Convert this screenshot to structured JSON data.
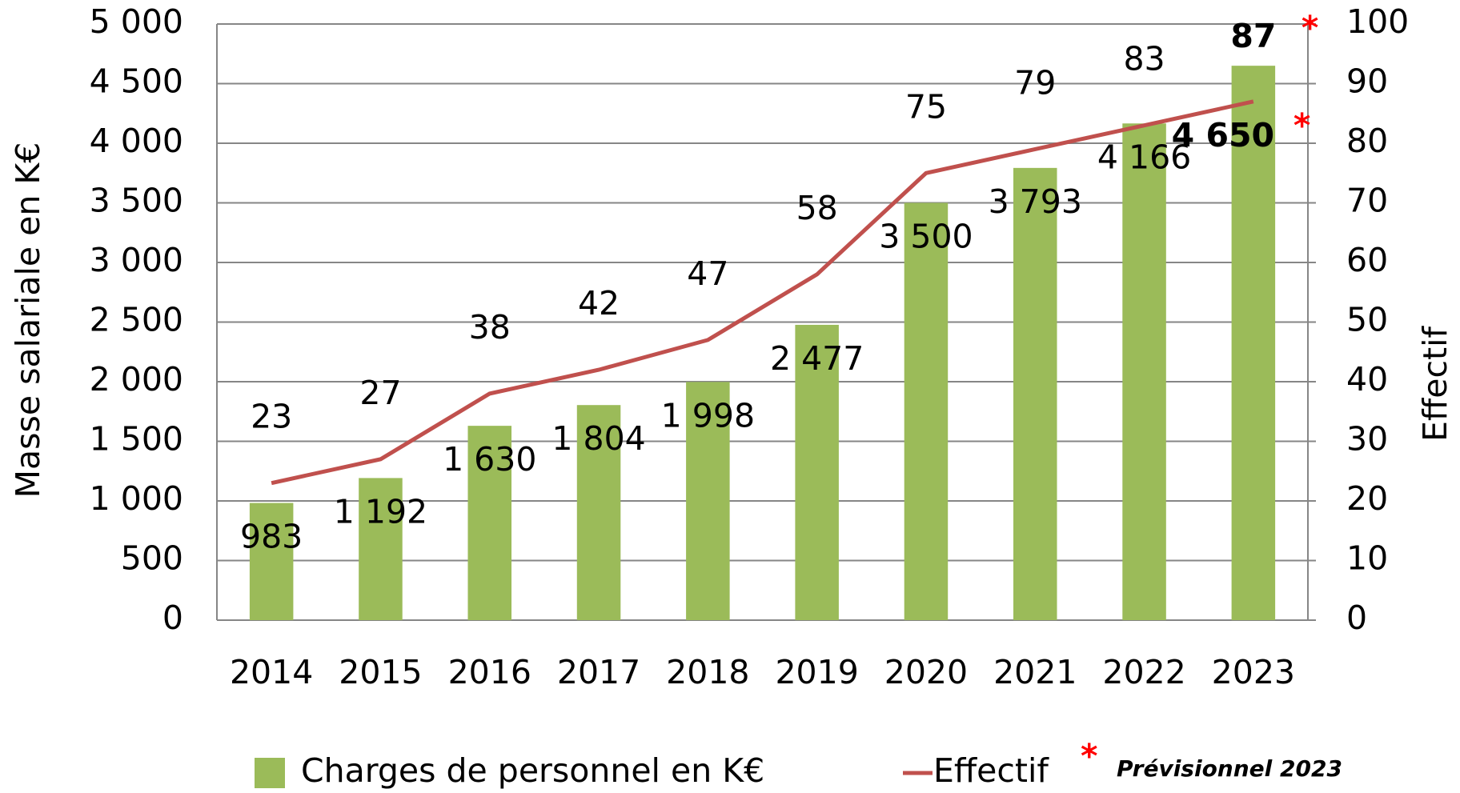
{
  "chart_data": {
    "type": "bar",
    "ylabel": "Masse salariale en K€",
    "y2label": "Effectif",
    "categories": [
      "2014",
      "2015",
      "2016",
      "2017",
      "2018",
      "2019",
      "2020",
      "2021",
      "2022",
      "2023"
    ],
    "series": [
      {
        "name": "Charges de personnel en K€",
        "color": "#9bbb59",
        "type": "bar",
        "values": [
          983,
          1192,
          1630,
          1804,
          1998,
          2477,
          3500,
          3793,
          4166,
          4650
        ],
        "value_labels": [
          "983",
          "1 192",
          "1 630",
          "1 804",
          "1 998",
          "2 477",
          "3 500",
          "3 793",
          "4 166",
          "4 650"
        ]
      },
      {
        "name": "Effectif",
        "color": "#c0504d",
        "type": "line",
        "axis": "y2",
        "values": [
          23,
          27,
          38,
          42,
          47,
          58,
          75,
          79,
          83,
          87
        ]
      }
    ],
    "ylim": [
      0,
      5000
    ],
    "yticks": [
      0,
      500,
      {
        "value": 1000,
        "label": "1 000"
      },
      {
        "value": 1500,
        "label": "1 500"
      },
      {
        "value": 2000,
        "label": "2 000"
      },
      {
        "value": 2500,
        "label": "2 500"
      },
      {
        "value": 3000,
        "label": "3 000"
      },
      {
        "value": 3500,
        "label": "3 500"
      },
      {
        "value": 4000,
        "label": "4 000"
      },
      {
        "value": 4500,
        "label": "4 500"
      },
      {
        "value": 5000,
        "label": "5 000"
      }
    ],
    "y2lim": [
      0,
      100
    ],
    "y2ticks": [
      0,
      10,
      20,
      30,
      40,
      50,
      60,
      70,
      80,
      90,
      100
    ],
    "grid": true,
    "legend": "bottom",
    "forecast_marker": "*",
    "forecast_note": "Prévisionnel 2023"
  }
}
